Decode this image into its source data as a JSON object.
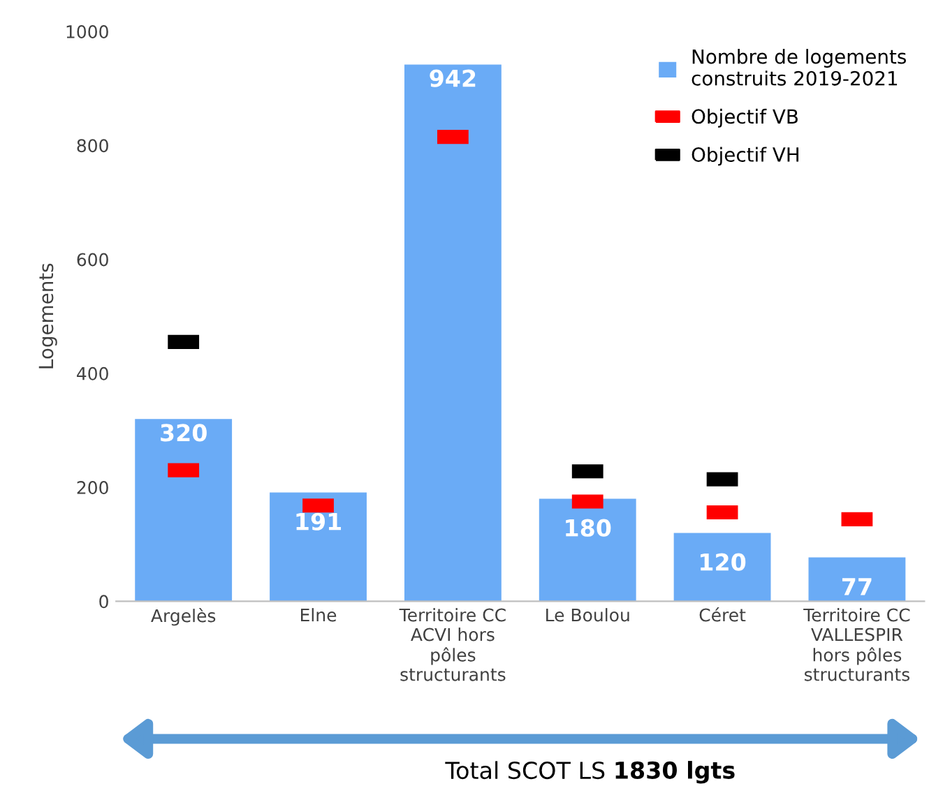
{
  "chart_data": {
    "type": "bar",
    "ylabel": "Logements",
    "categories": [
      "Argelès",
      "Elne",
      "Territoire CC\nACVI hors\npôles\nstructurants",
      "Le Boulou",
      "Céret",
      "Territoire CC\nVALLESPIR\nhors pôles\nstructurants"
    ],
    "series": [
      {
        "name": "Nombre de logements\nconstruits 2019-2021",
        "color": "#6aabf6",
        "values": [
          320,
          191,
          942,
          180,
          120,
          77
        ],
        "value_labels": [
          "320",
          "191",
          "942",
          "180",
          "120",
          "77"
        ]
      },
      {
        "name": "Objectif VB",
        "type": "scatter",
        "color": "#ff0000",
        "values": [
          230,
          168,
          815,
          175,
          156,
          144
        ]
      },
      {
        "name": "Objectif VH",
        "type": "scatter",
        "color": "#000000",
        "values": [
          455,
          null,
          null,
          228,
          214,
          null
        ]
      }
    ],
    "ylim": [
      0,
      1000
    ],
    "yticks": [
      0,
      200,
      400,
      600,
      800,
      1000
    ],
    "legend": "top right",
    "annotations": [
      "Total SCOT LS",
      "1830 lgts"
    ]
  }
}
